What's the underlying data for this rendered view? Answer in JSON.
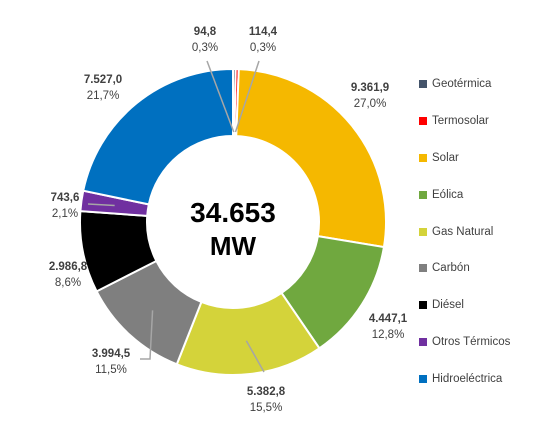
{
  "chart_data": {
    "type": "donut",
    "center_label": {
      "value": "34.653",
      "unit": "MW"
    },
    "series": [
      {
        "name": "Geotérmica",
        "value_label": "94,8",
        "pct_label": "0,3%",
        "value": 94.8,
        "color": "#44546A"
      },
      {
        "name": "Termosolar",
        "value_label": "114,4",
        "pct_label": "0,3%",
        "value": 114.4,
        "color": "#FF0000"
      },
      {
        "name": "Solar",
        "value_label": "9.361,9",
        "pct_label": "27,0%",
        "value": 9361.9,
        "color": "#F5B800"
      },
      {
        "name": "Eólica",
        "value_label": "4.447,1",
        "pct_label": "12,8%",
        "value": 4447.1,
        "color": "#70A83F"
      },
      {
        "name": "Gas Natural",
        "value_label": "5.382,8",
        "pct_label": "15,5%",
        "value": 5382.8,
        "color": "#D4D33A"
      },
      {
        "name": "Carbón",
        "value_label": "3.994,5",
        "pct_label": "11,5%",
        "value": 3994.5,
        "color": "#7F7F7F"
      },
      {
        "name": "Diésel",
        "value_label": "2.986,8",
        "pct_label": "8,6%",
        "value": 2986.8,
        "color": "#000000"
      },
      {
        "name": "Otros Térmicos",
        "value_label": "743,6",
        "pct_label": "2,1%",
        "value": 743.6,
        "color": "#7030A0"
      },
      {
        "name": "Hidroeléctrica",
        "value_label": "7.527,0",
        "pct_label": "21,7%",
        "value": 7527.0,
        "color": "#0070C0"
      }
    ],
    "legend_placement": "right"
  }
}
